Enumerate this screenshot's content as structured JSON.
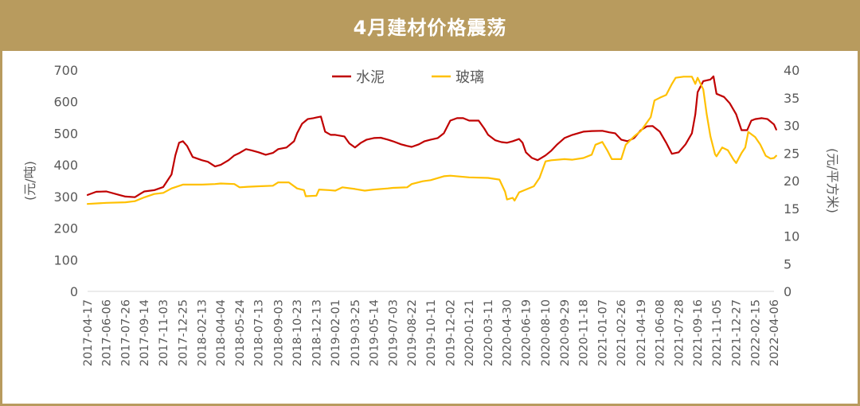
{
  "title": "4月建材价格震荡",
  "colors": {
    "frame": "#b89b5e",
    "cement": "#c00000",
    "glass": "#ffc000",
    "axis_text": "#595959",
    "axis_line": "#d9d9d9"
  },
  "chart_data": {
    "type": "line",
    "y_left_label": "(元/吨)",
    "y_right_label": "(元/平方米)",
    "ylim_left": [
      0,
      700
    ],
    "ylim_right": [
      0,
      40
    ],
    "y_left_ticks": [
      "0",
      "100",
      "200",
      "300",
      "400",
      "500",
      "600",
      "700"
    ],
    "y_right_ticks": [
      "0",
      "5",
      "10",
      "15",
      "20",
      "25",
      "30",
      "35",
      "40"
    ],
    "grid": false,
    "legend_position": "top-center",
    "x_tick_labels": [
      "2017-04-17",
      "2017-06-06",
      "2017-07-26",
      "2017-09-14",
      "2017-11-03",
      "2017-12-25",
      "2018-02-13",
      "2018-04-04",
      "2018-05-24",
      "2018-07-13",
      "2018-09-03",
      "2018-10-23",
      "2018-12-13",
      "2019-02-01",
      "2019-03-25",
      "2019-05-14",
      "2019-07-03",
      "2019-08-22",
      "2019-10-11",
      "2019-12-02",
      "2020-01-21",
      "2020-03-11",
      "2020-04-30",
      "2020-06-19",
      "2020-08-10",
      "2020-09-29",
      "2020-11-18",
      "2021-01-07",
      "2021-02-26",
      "2021-04-19",
      "2021-06-08",
      "2021-07-28",
      "2021-09-16",
      "2021-11-05",
      "2021-12-27",
      "2022-02-15",
      "2022-04-06"
    ],
    "series": [
      {
        "name": "水泥",
        "axis": "left",
        "points": [
          [
            "2017-04-17",
            305
          ],
          [
            "2017-05-10",
            315
          ],
          [
            "2017-06-06",
            316
          ],
          [
            "2017-07-10",
            305
          ],
          [
            "2017-07-26",
            300
          ],
          [
            "2017-08-20",
            298
          ],
          [
            "2017-09-05",
            310
          ],
          [
            "2017-09-14",
            316
          ],
          [
            "2017-10-10",
            320
          ],
          [
            "2017-11-03",
            330
          ],
          [
            "2017-11-25",
            370
          ],
          [
            "2017-12-05",
            430
          ],
          [
            "2017-12-15",
            470
          ],
          [
            "2017-12-25",
            475
          ],
          [
            "2018-01-05",
            460
          ],
          [
            "2018-01-20",
            425
          ],
          [
            "2018-02-13",
            415
          ],
          [
            "2018-03-01",
            410
          ],
          [
            "2018-03-20",
            395
          ],
          [
            "2018-04-04",
            400
          ],
          [
            "2018-04-25",
            415
          ],
          [
            "2018-05-10",
            430
          ],
          [
            "2018-05-24",
            438
          ],
          [
            "2018-06-10",
            450
          ],
          [
            "2018-06-25",
            446
          ],
          [
            "2018-07-13",
            440
          ],
          [
            "2018-08-01",
            432
          ],
          [
            "2018-08-20",
            438
          ],
          [
            "2018-09-03",
            450
          ],
          [
            "2018-09-25",
            455
          ],
          [
            "2018-10-15",
            475
          ],
          [
            "2018-10-23",
            500
          ],
          [
            "2018-11-05",
            530
          ],
          [
            "2018-11-20",
            545
          ],
          [
            "2018-12-05",
            548
          ],
          [
            "2018-12-13",
            550
          ],
          [
            "2018-12-25",
            553
          ],
          [
            "2019-01-05",
            505
          ],
          [
            "2019-01-20",
            495
          ],
          [
            "2019-02-01",
            495
          ],
          [
            "2019-02-25",
            490
          ],
          [
            "2019-03-10",
            468
          ],
          [
            "2019-03-25",
            455
          ],
          [
            "2019-04-10",
            470
          ],
          [
            "2019-04-25",
            480
          ],
          [
            "2019-05-14",
            485
          ],
          [
            "2019-06-01",
            486
          ],
          [
            "2019-06-20",
            480
          ],
          [
            "2019-07-03",
            475
          ],
          [
            "2019-07-25",
            465
          ],
          [
            "2019-08-10",
            460
          ],
          [
            "2019-08-22",
            457
          ],
          [
            "2019-09-10",
            465
          ],
          [
            "2019-09-25",
            475
          ],
          [
            "2019-10-11",
            480
          ],
          [
            "2019-10-30",
            485
          ],
          [
            "2019-11-15",
            500
          ],
          [
            "2019-12-02",
            540
          ],
          [
            "2019-12-20",
            548
          ],
          [
            "2020-01-05",
            548
          ],
          [
            "2020-01-21",
            540
          ],
          [
            "2020-02-15",
            540
          ],
          [
            "2020-03-01",
            515
          ],
          [
            "2020-03-11",
            495
          ],
          [
            "2020-03-30",
            478
          ],
          [
            "2020-04-15",
            472
          ],
          [
            "2020-04-30",
            470
          ],
          [
            "2020-05-15",
            475
          ],
          [
            "2020-06-01",
            482
          ],
          [
            "2020-06-10",
            470
          ],
          [
            "2020-06-19",
            440
          ],
          [
            "2020-07-05",
            422
          ],
          [
            "2020-07-20",
            415
          ],
          [
            "2020-08-10",
            430
          ],
          [
            "2020-08-25",
            445
          ],
          [
            "2020-09-10",
            465
          ],
          [
            "2020-09-29",
            485
          ],
          [
            "2020-10-20",
            495
          ],
          [
            "2020-11-18",
            505
          ],
          [
            "2020-12-10",
            507
          ],
          [
            "2021-01-07",
            508
          ],
          [
            "2021-01-25",
            503
          ],
          [
            "2021-02-10",
            500
          ],
          [
            "2021-02-26",
            480
          ],
          [
            "2021-03-15",
            475
          ],
          [
            "2021-04-01",
            485
          ],
          [
            "2021-04-19",
            510
          ],
          [
            "2021-05-05",
            522
          ],
          [
            "2021-05-20",
            523
          ],
          [
            "2021-06-08",
            505
          ],
          [
            "2021-06-25",
            470
          ],
          [
            "2021-07-10",
            435
          ],
          [
            "2021-07-28",
            440
          ],
          [
            "2021-08-15",
            465
          ],
          [
            "2021-09-01",
            500
          ],
          [
            "2021-09-10",
            560
          ],
          [
            "2021-09-16",
            630
          ],
          [
            "2021-10-01",
            665
          ],
          [
            "2021-10-20",
            670
          ],
          [
            "2021-10-28",
            680
          ],
          [
            "2021-11-05",
            625
          ],
          [
            "2021-11-25",
            615
          ],
          [
            "2021-12-10",
            595
          ],
          [
            "2021-12-27",
            560
          ],
          [
            "2022-01-10",
            510
          ],
          [
            "2022-01-25",
            510
          ],
          [
            "2022-02-05",
            540
          ],
          [
            "2022-02-15",
            545
          ],
          [
            "2022-03-05",
            548
          ],
          [
            "2022-03-20",
            545
          ],
          [
            "2022-04-06",
            528
          ],
          [
            "2022-04-12",
            512
          ]
        ]
      },
      {
        "name": "玻璃",
        "axis": "right",
        "points": [
          [
            "2017-04-17",
            15.8
          ],
          [
            "2017-06-06",
            16.0
          ],
          [
            "2017-07-26",
            16.1
          ],
          [
            "2017-08-20",
            16.3
          ],
          [
            "2017-09-14",
            17.0
          ],
          [
            "2017-10-10",
            17.6
          ],
          [
            "2017-11-03",
            17.8
          ],
          [
            "2017-11-25",
            18.6
          ],
          [
            "2017-12-25",
            19.3
          ],
          [
            "2018-02-13",
            19.3
          ],
          [
            "2018-03-20",
            19.4
          ],
          [
            "2018-04-04",
            19.5
          ],
          [
            "2018-05-10",
            19.4
          ],
          [
            "2018-05-24",
            18.8
          ],
          [
            "2018-06-15",
            18.9
          ],
          [
            "2018-07-13",
            19.0
          ],
          [
            "2018-08-20",
            19.1
          ],
          [
            "2018-09-03",
            19.7
          ],
          [
            "2018-10-01",
            19.7
          ],
          [
            "2018-10-23",
            18.6
          ],
          [
            "2018-11-10",
            18.3
          ],
          [
            "2018-11-15",
            17.2
          ],
          [
            "2018-12-13",
            17.3
          ],
          [
            "2018-12-20",
            18.4
          ],
          [
            "2019-01-15",
            18.3
          ],
          [
            "2019-02-01",
            18.2
          ],
          [
            "2019-02-20",
            18.8
          ],
          [
            "2019-03-25",
            18.5
          ],
          [
            "2019-04-20",
            18.2
          ],
          [
            "2019-05-14",
            18.4
          ],
          [
            "2019-06-20",
            18.6
          ],
          [
            "2019-07-03",
            18.7
          ],
          [
            "2019-08-10",
            18.8
          ],
          [
            "2019-08-22",
            19.4
          ],
          [
            "2019-09-20",
            19.9
          ],
          [
            "2019-10-11",
            20.1
          ],
          [
            "2019-11-15",
            20.8
          ],
          [
            "2019-12-02",
            20.9
          ],
          [
            "2020-01-21",
            20.6
          ],
          [
            "2020-03-11",
            20.5
          ],
          [
            "2020-04-10",
            20.2
          ],
          [
            "2020-04-25",
            18.0
          ],
          [
            "2020-04-30",
            16.6
          ],
          [
            "2020-05-15",
            16.9
          ],
          [
            "2020-05-20",
            16.4
          ],
          [
            "2020-06-01",
            17.9
          ],
          [
            "2020-06-19",
            18.4
          ],
          [
            "2020-07-10",
            19.0
          ],
          [
            "2020-07-25",
            20.5
          ],
          [
            "2020-08-10",
            23.5
          ],
          [
            "2020-08-25",
            23.7
          ],
          [
            "2020-09-29",
            23.9
          ],
          [
            "2020-10-20",
            23.8
          ],
          [
            "2020-11-18",
            24.1
          ],
          [
            "2020-12-10",
            24.7
          ],
          [
            "2020-12-20",
            26.5
          ],
          [
            "2021-01-07",
            27.0
          ],
          [
            "2021-01-20",
            25.5
          ],
          [
            "2021-02-01",
            23.9
          ],
          [
            "2021-02-26",
            23.9
          ],
          [
            "2021-03-10",
            26.5
          ],
          [
            "2021-04-01",
            28.0
          ],
          [
            "2021-04-19",
            29.0
          ],
          [
            "2021-05-15",
            31.5
          ],
          [
            "2021-05-25",
            34.5
          ],
          [
            "2021-06-08",
            35.0
          ],
          [
            "2021-06-25",
            35.5
          ],
          [
            "2021-07-10",
            37.5
          ],
          [
            "2021-07-20",
            38.6
          ],
          [
            "2021-08-10",
            38.8
          ],
          [
            "2021-09-01",
            38.8
          ],
          [
            "2021-09-10",
            37.5
          ],
          [
            "2021-09-16",
            38.6
          ],
          [
            "2021-10-01",
            36.5
          ],
          [
            "2021-10-10",
            32.0
          ],
          [
            "2021-10-20",
            28.0
          ],
          [
            "2021-11-01",
            24.8
          ],
          [
            "2021-11-05",
            24.4
          ],
          [
            "2021-11-20",
            26.0
          ],
          [
            "2021-12-05",
            25.5
          ],
          [
            "2021-12-20",
            23.8
          ],
          [
            "2021-12-27",
            23.2
          ],
          [
            "2022-01-10",
            25.0
          ],
          [
            "2022-01-20",
            26.0
          ],
          [
            "2022-01-28",
            28.8
          ],
          [
            "2022-02-15",
            27.9
          ],
          [
            "2022-03-01",
            26.5
          ],
          [
            "2022-03-15",
            24.5
          ],
          [
            "2022-03-28",
            24.0
          ],
          [
            "2022-04-06",
            24.1
          ],
          [
            "2022-04-12",
            24.5
          ]
        ]
      }
    ]
  }
}
